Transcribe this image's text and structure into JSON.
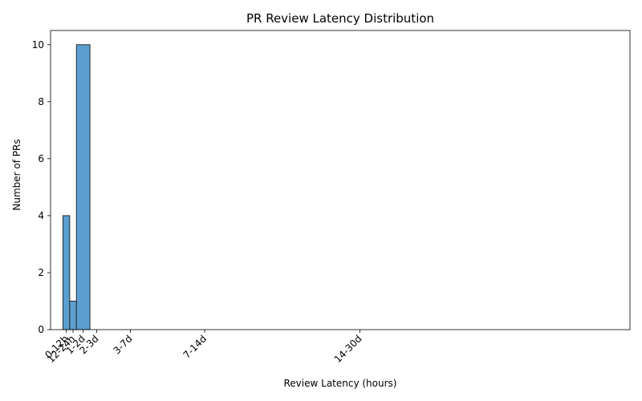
{
  "chart_data": {
    "type": "bar",
    "title": "PR Review Latency Distribution",
    "xlabel": "Review Latency (hours)",
    "ylabel": "Number of PRs",
    "bar_color": "#5b9fd1",
    "edge_color": "#2b2b2b",
    "xlim": [
      -22,
      1008
    ],
    "ylim": [
      0,
      10.5
    ],
    "yticks": [
      0,
      2,
      4,
      6,
      8,
      10
    ],
    "xticks": [
      {
        "value": 6,
        "label": "0-12h"
      },
      {
        "value": 18,
        "label": "12-24h"
      },
      {
        "value": 36,
        "label": "1-2d"
      },
      {
        "value": 60,
        "label": "2-3d"
      },
      {
        "value": 120,
        "label": "3-7d"
      },
      {
        "value": 252,
        "label": "7-14d"
      },
      {
        "value": 528,
        "label": "14-30d"
      }
    ],
    "bins": [
      {
        "start": 0,
        "end": 12,
        "value": 4
      },
      {
        "start": 12,
        "end": 24,
        "value": 1
      },
      {
        "start": 24,
        "end": 48,
        "value": 10
      },
      {
        "start": 48,
        "end": 72,
        "value": 0
      },
      {
        "start": 72,
        "end": 168,
        "value": 0
      },
      {
        "start": 168,
        "end": 336,
        "value": 0
      },
      {
        "start": 336,
        "end": 720,
        "value": 0
      },
      {
        "start": 720,
        "end": 960,
        "value": 0
      }
    ]
  }
}
